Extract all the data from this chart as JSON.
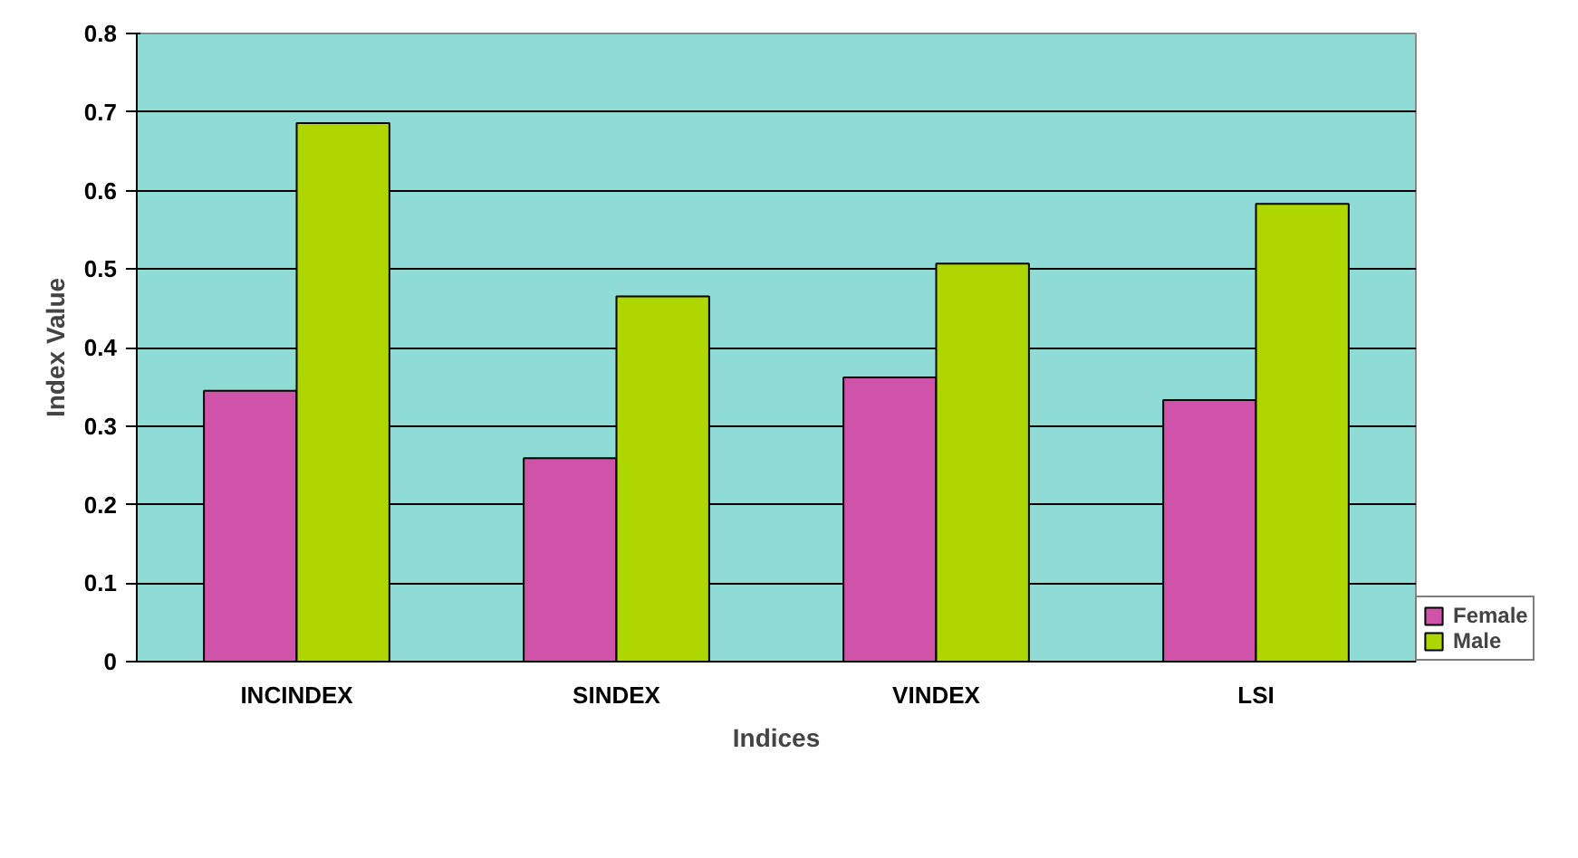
{
  "chart_data": {
    "type": "bar",
    "xlabel": "Indices",
    "ylabel": "Index Value",
    "categories": [
      "INCINDEX",
      "SINDEX",
      "VINDEX",
      "LSI"
    ],
    "series": [
      {
        "name": "Female",
        "color": "#cf53a8",
        "values": [
          0.345,
          0.259,
          0.362,
          0.333
        ]
      },
      {
        "name": "Male",
        "color": "#aed600",
        "values": [
          0.686,
          0.465,
          0.507,
          0.583
        ]
      }
    ],
    "ylim": [
      0,
      0.8
    ],
    "yticks": [
      0,
      0.1,
      0.2,
      0.3,
      0.4,
      0.5,
      0.6,
      0.7,
      0.8
    ],
    "grid": "y",
    "legend": "bottom right"
  }
}
